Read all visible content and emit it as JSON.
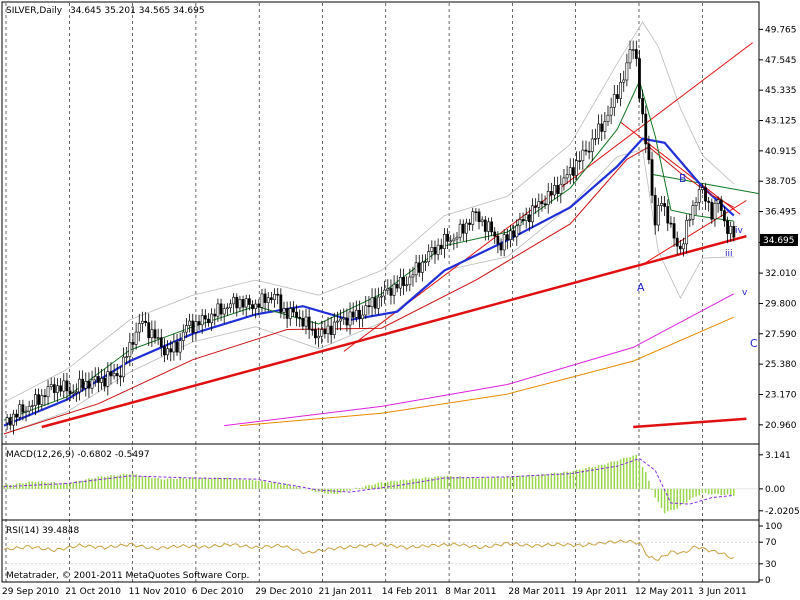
{
  "app": "Metatrader",
  "copyright": "Metatrader, © 2001-2011 MetaQuotes Software Corp.",
  "chart_data": [
    {
      "type": "candlestick",
      "symbol": "SILVER,Daily",
      "ohlc_header": "34.645 35.201 34.565 34.695",
      "last_price": 34.695,
      "last_price_label": "34.695",
      "ylim": [
        20.0,
        50.3
      ],
      "y_ticks": [
        "49.765",
        "47.545",
        "45.335",
        "43.125",
        "40.915",
        "38.705",
        "36.495",
        "34.235",
        "32.010",
        "29.800",
        "27.590",
        "25.380",
        "23.170",
        "20.960"
      ],
      "x_labels": [
        "29 Sep 2010",
        "21 Oct 2010",
        "11 Nov 2010",
        "6 Dec 2010",
        "29 Dec 2010",
        "21 Jan 2011",
        "14 Feb 2011",
        "8 Mar 2011",
        "28 Mar 2011",
        "19 Apr 2011",
        "12 May 2011",
        "3 Jun 2011"
      ],
      "wave_labels": [
        "A",
        "B",
        "C",
        "iii",
        "iv",
        "v"
      ],
      "close_path": [
        [
          0,
          21.1
        ],
        [
          5,
          21.9
        ],
        [
          10,
          22.6
        ],
        [
          14,
          23.5
        ],
        [
          18,
          23.8
        ],
        [
          21,
          23.3
        ],
        [
          26,
          24.0
        ],
        [
          32,
          24.3
        ],
        [
          37,
          24.8
        ],
        [
          41,
          27.3
        ],
        [
          44,
          28.5
        ],
        [
          48,
          27.3
        ],
        [
          52,
          26.2
        ],
        [
          55,
          26.7
        ],
        [
          58,
          28.1
        ],
        [
          62,
          28.4
        ],
        [
          66,
          28.9
        ],
        [
          70,
          29.5
        ],
        [
          75,
          30.0
        ],
        [
          78,
          29.6
        ],
        [
          82,
          29.9
        ],
        [
          86,
          30.5
        ],
        [
          88,
          29.4
        ],
        [
          92,
          29.0
        ],
        [
          95,
          28.6
        ],
        [
          98,
          27.7
        ],
        [
          101,
          27.5
        ],
        [
          104,
          28.1
        ],
        [
          108,
          28.7
        ],
        [
          113,
          29.0
        ],
        [
          118,
          30.0
        ],
        [
          123,
          30.9
        ],
        [
          128,
          31.4
        ],
        [
          132,
          32.5
        ],
        [
          136,
          33.6
        ],
        [
          140,
          34.3
        ],
        [
          143,
          34.6
        ],
        [
          146,
          35.2
        ],
        [
          149,
          36.3
        ],
        [
          152,
          35.8
        ],
        [
          155,
          35.0
        ],
        [
          158,
          34.0
        ],
        [
          160,
          34.6
        ],
        [
          163,
          35.4
        ],
        [
          166,
          36.1
        ],
        [
          169,
          36.8
        ],
        [
          172,
          37.4
        ],
        [
          175,
          38.0
        ],
        [
          178,
          38.8
        ],
        [
          181,
          39.7
        ],
        [
          184,
          40.6
        ],
        [
          187,
          41.6
        ],
        [
          190,
          42.7
        ],
        [
          193,
          44.0
        ],
        [
          196,
          45.8
        ],
        [
          198,
          46.9
        ],
        [
          199,
          48.2
        ],
        [
          200,
          48.6
        ],
        [
          201,
          47.6
        ],
        [
          202,
          45.0
        ],
        [
          203,
          43.0
        ],
        [
          205,
          40.3
        ],
        [
          207,
          35.5
        ],
        [
          209,
          37.4
        ],
        [
          211,
          36.1
        ],
        [
          213,
          34.4
        ],
        [
          215,
          33.8
        ],
        [
          217,
          35.3
        ],
        [
          219,
          36.8
        ],
        [
          221,
          38.2
        ],
        [
          223,
          37.4
        ],
        [
          225,
          36.5
        ],
        [
          227,
          37.2
        ],
        [
          229,
          35.8
        ],
        [
          231,
          35.0
        ],
        [
          232,
          34.7
        ]
      ],
      "volatility_band": {
        "upper": [
          [
            0,
            22.6
          ],
          [
            20,
            25.0
          ],
          [
            40,
            28.6
          ],
          [
            60,
            30.4
          ],
          [
            80,
            31.5
          ],
          [
            100,
            30.4
          ],
          [
            120,
            32.2
          ],
          [
            140,
            36.2
          ],
          [
            160,
            37.6
          ],
          [
            180,
            41.4
          ],
          [
            195,
            47.3
          ],
          [
            203,
            50.3
          ],
          [
            208,
            48.5
          ],
          [
            215,
            44.0
          ],
          [
            222,
            40.6
          ],
          [
            232,
            38.5
          ]
        ],
        "lower": [
          [
            0,
            20.3
          ],
          [
            20,
            21.9
          ],
          [
            40,
            24.8
          ],
          [
            60,
            27.0
          ],
          [
            80,
            28.1
          ],
          [
            100,
            26.5
          ],
          [
            120,
            28.4
          ],
          [
            140,
            32.2
          ],
          [
            160,
            33.2
          ],
          [
            180,
            36.9
          ],
          [
            195,
            40.5
          ],
          [
            203,
            41.0
          ],
          [
            208,
            33.6
          ],
          [
            215,
            30.2
          ],
          [
            222,
            33.1
          ],
          [
            232,
            33.2
          ]
        ]
      },
      "moving_averages": [
        {
          "color": "#1f2ed8",
          "points": [
            [
              0,
              20.9
            ],
            [
              20,
              22.8
            ],
            [
              40,
              25.6
            ],
            [
              60,
              27.6
            ],
            [
              80,
              29.0
            ],
            [
              95,
              29.6
            ],
            [
              110,
              28.6
            ],
            [
              125,
              29.2
            ],
            [
              140,
              32.2
            ],
            [
              160,
              34.4
            ],
            [
              180,
              36.8
            ],
            [
              195,
              39.8
            ],
            [
              203,
              41.8
            ],
            [
              210,
              41.5
            ],
            [
              222,
              38.3
            ],
            [
              232,
              36.2
            ]
          ]
        },
        {
          "color": "#cc1111",
          "points": [
            [
              0,
              20.3
            ],
            [
              30,
              22.5
            ],
            [
              60,
              25.7
            ],
            [
              90,
              27.9
            ],
            [
              120,
              28.0
            ],
            [
              150,
              31.5
            ],
            [
              180,
              35.6
            ],
            [
              198,
              40.3
            ],
            [
              205,
              41.2
            ],
            [
              215,
              39.3
            ],
            [
              225,
              37.7
            ],
            [
              232,
              36.8
            ]
          ]
        },
        {
          "color": "#117722",
          "points": [
            [
              0,
              21.3
            ],
            [
              20,
              23.0
            ],
            [
              40,
              26.4
            ],
            [
              60,
              28.1
            ],
            [
              80,
              29.6
            ],
            [
              100,
              28.3
            ],
            [
              120,
              30.5
            ],
            [
              140,
              34.0
            ],
            [
              160,
              35.0
            ],
            [
              180,
              38.2
            ],
            [
              195,
              42.5
            ],
            [
              202,
              46.0
            ],
            [
              207,
              42.0
            ],
            [
              212,
              36.6
            ],
            [
              220,
              36.2
            ],
            [
              232,
              35.8
            ]
          ]
        },
        {
          "color": "#dd22dd",
          "points": [
            [
              70,
              20.9
            ],
            [
              120,
              22.3
            ],
            [
              160,
              23.9
            ],
            [
              200,
              26.6
            ],
            [
              232,
              30.5
            ]
          ]
        },
        {
          "color": "#e68a00",
          "points": [
            [
              75,
              20.9
            ],
            [
              120,
              21.8
            ],
            [
              160,
              23.2
            ],
            [
              200,
              25.6
            ],
            [
              232,
              28.8
            ]
          ]
        }
      ],
      "trend_lines": [
        {
          "color": "#e01010",
          "points": [
            [
              12,
              20.8
            ],
            [
              236,
              34.7
            ]
          ]
        },
        {
          "color": "#e01010",
          "points": [
            [
              200,
              20.8
            ],
            [
              236,
              21.4
            ]
          ]
        },
        {
          "color": "#e01010",
          "points": [
            [
              108,
              26.3
            ],
            [
              238,
              48.8
            ]
          ]
        },
        {
          "color": "#e01010",
          "points": [
            [
              196,
              43.0
            ],
            [
              234,
              36.3
            ]
          ]
        },
        {
          "color": "#e01010",
          "points": [
            [
              202,
              32.5
            ],
            [
              236,
              37.3
            ]
          ]
        },
        {
          "color": "#117722",
          "points": [
            [
              206,
              39.2
            ],
            [
              240,
              37.8
            ]
          ]
        }
      ]
    },
    {
      "type": "histogram",
      "title": "MACD(12,26,9) -0.6802 -0.5497",
      "y_ticks": [
        "3.141",
        "0.00",
        "-2.0205"
      ],
      "ylim": [
        -2.5,
        3.4
      ],
      "histogram": [
        [
          0,
          0.3
        ],
        [
          10,
          0.7
        ],
        [
          20,
          0.5
        ],
        [
          30,
          1.1
        ],
        [
          40,
          1.4
        ],
        [
          50,
          0.9
        ],
        [
          60,
          1.0
        ],
        [
          70,
          1.0
        ],
        [
          80,
          0.8
        ],
        [
          90,
          0.4
        ],
        [
          100,
          -0.3
        ],
        [
          105,
          -0.5
        ],
        [
          110,
          -0.1
        ],
        [
          120,
          0.6
        ],
        [
          130,
          0.9
        ],
        [
          140,
          1.2
        ],
        [
          150,
          1.0
        ],
        [
          160,
          1.1
        ],
        [
          170,
          1.3
        ],
        [
          180,
          1.6
        ],
        [
          190,
          2.2
        ],
        [
          198,
          2.9
        ],
        [
          201,
          3.1
        ],
        [
          204,
          1.5
        ],
        [
          207,
          -0.8
        ],
        [
          210,
          -2.2
        ],
        [
          214,
          -1.8
        ],
        [
          218,
          -1.0
        ],
        [
          222,
          -0.4
        ],
        [
          226,
          -0.5
        ],
        [
          232,
          -0.6
        ]
      ],
      "signal": [
        [
          0,
          0.2
        ],
        [
          20,
          0.5
        ],
        [
          40,
          1.2
        ],
        [
          60,
          1.0
        ],
        [
          80,
          0.9
        ],
        [
          100,
          -0.1
        ],
        [
          110,
          -0.3
        ],
        [
          125,
          0.3
        ],
        [
          140,
          1.0
        ],
        [
          160,
          1.1
        ],
        [
          180,
          1.4
        ],
        [
          195,
          2.1
        ],
        [
          202,
          2.8
        ],
        [
          207,
          1.7
        ],
        [
          212,
          -1.3
        ],
        [
          218,
          -1.4
        ],
        [
          225,
          -0.8
        ],
        [
          232,
          -0.6
        ]
      ]
    },
    {
      "type": "line",
      "title": "RSI(14) 39.4848",
      "y_ticks": [
        "100",
        "70",
        "30",
        "0"
      ],
      "ylim": [
        0,
        100
      ],
      "color": "#c8a040",
      "points": [
        [
          0,
          56
        ],
        [
          8,
          62
        ],
        [
          16,
          55
        ],
        [
          24,
          64
        ],
        [
          32,
          60
        ],
        [
          40,
          66
        ],
        [
          48,
          58
        ],
        [
          56,
          63
        ],
        [
          64,
          61
        ],
        [
          72,
          66
        ],
        [
          80,
          60
        ],
        [
          88,
          64
        ],
        [
          96,
          50
        ],
        [
          104,
          58
        ],
        [
          112,
          62
        ],
        [
          120,
          66
        ],
        [
          128,
          60
        ],
        [
          136,
          64
        ],
        [
          144,
          66
        ],
        [
          152,
          60
        ],
        [
          160,
          68
        ],
        [
          168,
          63
        ],
        [
          176,
          66
        ],
        [
          184,
          64
        ],
        [
          192,
          70
        ],
        [
          198,
          72
        ],
        [
          202,
          68
        ],
        [
          205,
          42
        ],
        [
          208,
          38
        ],
        [
          212,
          52
        ],
        [
          216,
          50
        ],
        [
          220,
          62
        ],
        [
          224,
          55
        ],
        [
          228,
          50
        ],
        [
          232,
          39
        ]
      ]
    }
  ]
}
